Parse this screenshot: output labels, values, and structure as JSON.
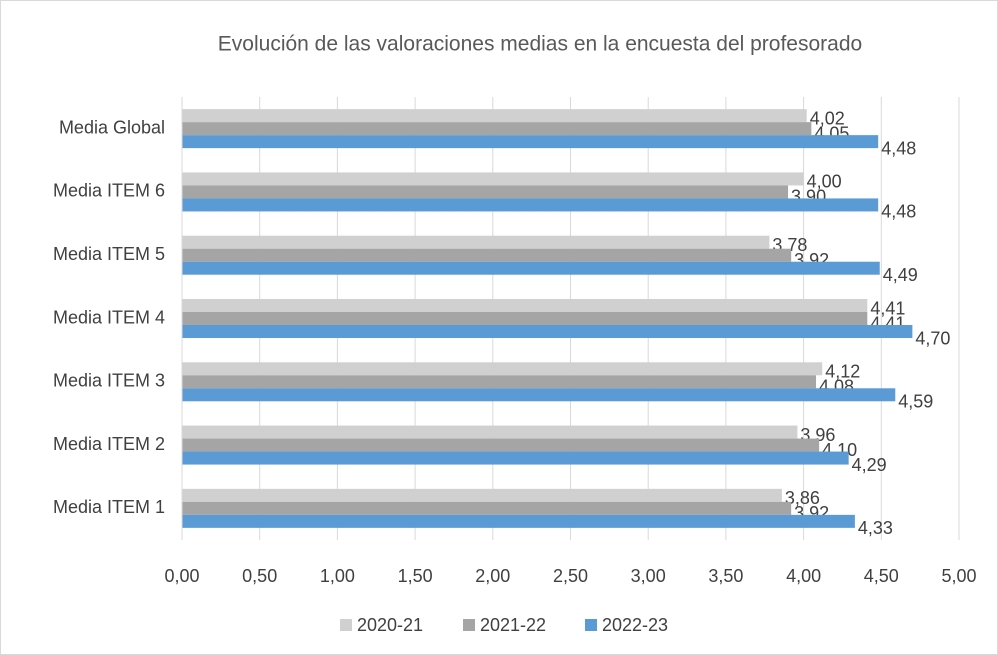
{
  "chart_data": {
    "type": "hbar",
    "title": "Evolución de las valoraciones medias en la encuesta del profesorado",
    "categories": [
      "Media Global",
      "Media ITEM 6",
      "Media ITEM 5",
      "Media ITEM 4",
      "Media ITEM 3",
      "Media ITEM 2",
      "Media ITEM 1"
    ],
    "series": [
      {
        "name": "2020-21",
        "color": "#d0d0d0",
        "values": [
          4.02,
          4.0,
          3.78,
          4.41,
          4.12,
          3.96,
          3.86
        ],
        "value_labels": [
          "4,02",
          "4,00",
          "3,78",
          "4,41",
          "4,12",
          "3,96",
          "3,86"
        ]
      },
      {
        "name": "2021-22",
        "color": "#a5a5a5",
        "values": [
          4.05,
          3.9,
          3.92,
          4.41,
          4.08,
          4.1,
          3.92
        ],
        "value_labels": [
          "4,05",
          "3,90",
          "3,92",
          "4,41",
          "4,08",
          "4,10",
          "3,92"
        ]
      },
      {
        "name": "2022-23",
        "color": "#5b9bd5",
        "values": [
          4.48,
          4.48,
          4.49,
          4.7,
          4.59,
          4.29,
          4.33
        ],
        "value_labels": [
          "4,48",
          "4,48",
          "4,49",
          "4,70",
          "4,59",
          "4,29",
          "4,33"
        ]
      }
    ],
    "xlim": [
      0,
      5
    ],
    "xticks": [
      {
        "value": 0,
        "label": "0,00"
      },
      {
        "value": 0.5,
        "label": "0,50"
      },
      {
        "value": 1,
        "label": "1,00"
      },
      {
        "value": 1.5,
        "label": "1,50"
      },
      {
        "value": 2,
        "label": "2,00"
      },
      {
        "value": 2.5,
        "label": "2,50"
      },
      {
        "value": 3,
        "label": "3,00"
      },
      {
        "value": 3.5,
        "label": "3,50"
      },
      {
        "value": 4,
        "label": "4,00"
      },
      {
        "value": 4.5,
        "label": "4,50"
      },
      {
        "value": 5,
        "label": "5,00"
      }
    ],
    "grid": true,
    "legend": "bottom"
  }
}
